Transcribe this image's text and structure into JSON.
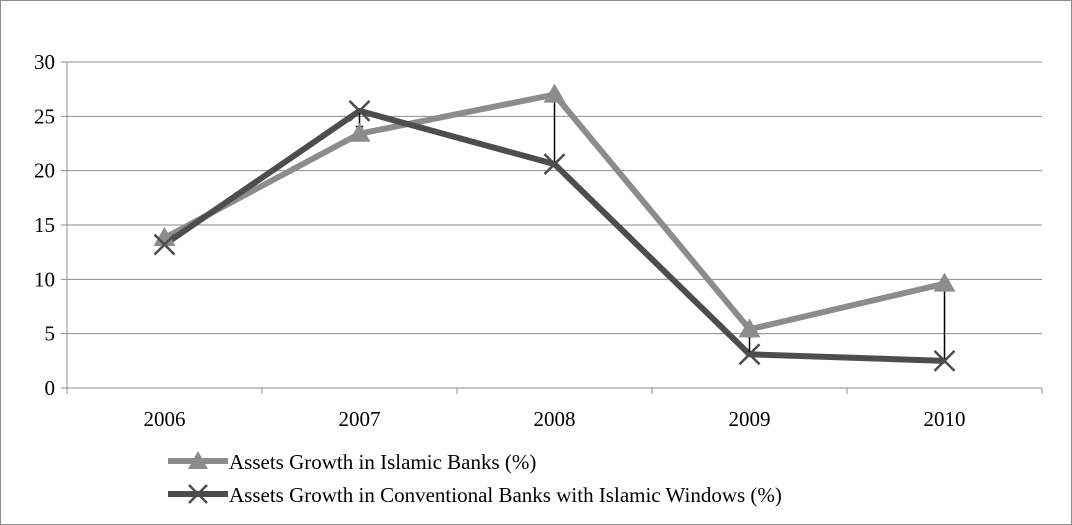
{
  "chart_data": {
    "type": "line",
    "categories": [
      "2006",
      "2007",
      "2008",
      "2009",
      "2010"
    ],
    "series": [
      {
        "name": "Assets Growth in Islamic Banks (%)",
        "values": [
          13.8,
          23.4,
          27.0,
          5.4,
          9.6
        ],
        "color": "#8c8c8c",
        "marker": "triangle"
      },
      {
        "name": "Assets Growth in Conventional Banks with Islamic Windows (%)",
        "values": [
          13.2,
          25.5,
          20.6,
          3.1,
          2.5
        ],
        "color": "#4d4d4d",
        "marker": "x"
      }
    ],
    "ylim": [
      0,
      30
    ],
    "yticks": [
      "0",
      "5",
      "10",
      "15",
      "20",
      "25",
      "30"
    ],
    "grid": true,
    "legend_position": "bottom",
    "difference_arrows": true,
    "title": "",
    "xlabel": "",
    "ylabel": ""
  }
}
